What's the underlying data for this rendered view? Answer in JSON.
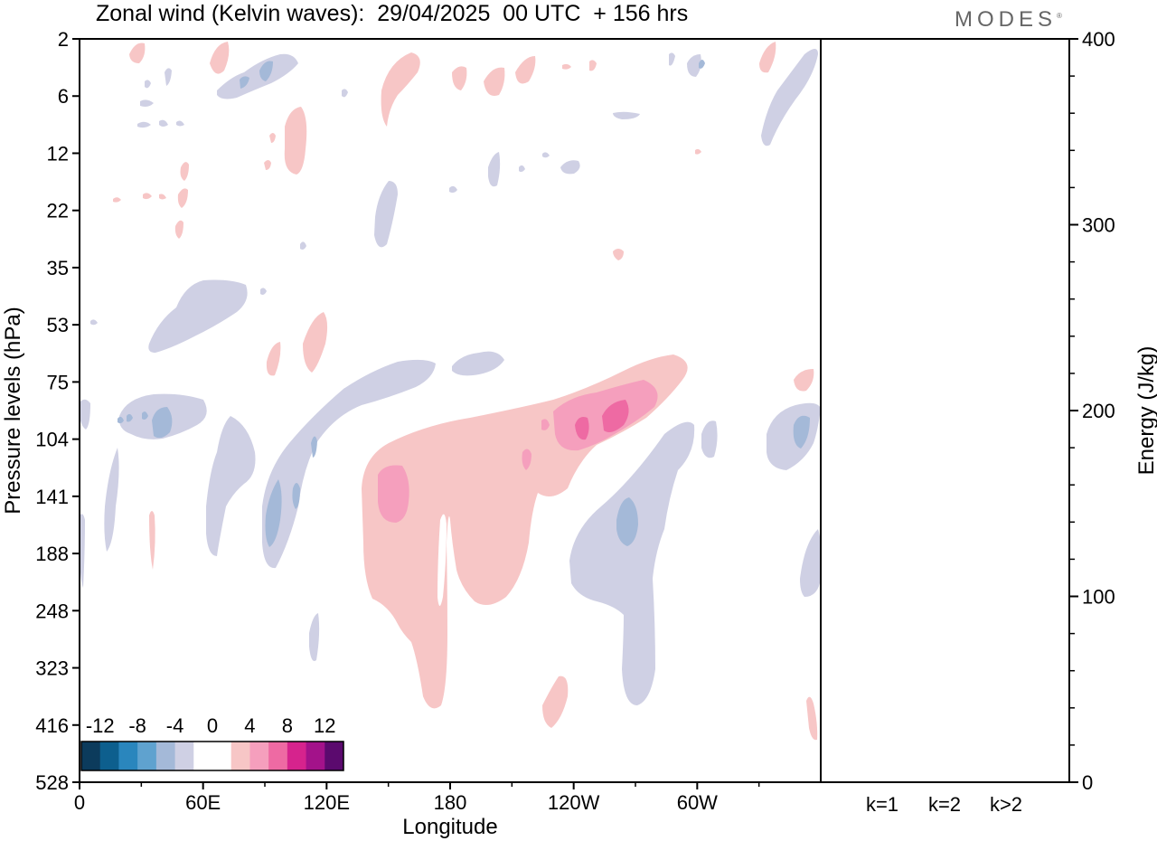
{
  "title": "Zonal wind (Kelvin waves):  29/04/2025  00 UTC  + 156 hrs",
  "logo": "MODES",
  "colors": {
    "neg_weak": "#cfd0e4",
    "neg_mid": "#a4b9d8",
    "neg_strong": "#7ea4cf",
    "pos_weak": "#f7c6c6",
    "pos_mid": "#f59fbd",
    "pos_strong": "#ee6aa3"
  },
  "chart_data": [
    {
      "type": "heatmap",
      "title": "Zonal wind (Kelvin waves):  29/04/2025  00 UTC  + 156 hrs",
      "xlabel": "Longitude",
      "ylabel": "Pressure levels (hPa)",
      "x_ticks": [
        "0",
        "60E",
        "120E",
        "180",
        "120W",
        "60W"
      ],
      "y_ticks": [
        "2",
        "6",
        "12",
        "22",
        "35",
        "53",
        "75",
        "104",
        "141",
        "188",
        "248",
        "323",
        "416",
        "528"
      ],
      "colorbar": {
        "labels": [
          "-12",
          "-8",
          "-4",
          "0",
          "4",
          "8",
          "12"
        ],
        "colors": [
          "#0c3b5c",
          "#0d5f8e",
          "#2a86bd",
          "#5fa2cf",
          "#a4b9d8",
          "#cfd0e4",
          "#ffffff",
          "#ffffff",
          "#f7c6c6",
          "#f59fbd",
          "#ee6aa3",
          "#d6238d",
          "#a3128a",
          "#5b0a6e"
        ]
      },
      "features": [
        {
          "sign": "positive",
          "max_value": 10,
          "lon_range": [
            "100W",
            "140W"
          ],
          "p_range": [
            75,
            141
          ]
        },
        {
          "sign": "positive",
          "max_value": 6,
          "lon_range": [
            "150E",
            "160E"
          ],
          "p_range": [
            120,
            188
          ]
        },
        {
          "sign": "positive",
          "max_value": 4,
          "lon_range": [
            "130E",
            "60W"
          ],
          "p_range": [
            75,
            416
          ]
        },
        {
          "sign": "negative",
          "max_value": -6,
          "lon_range": [
            "40E",
            "120E"
          ],
          "p_range": [
            75,
            188
          ]
        },
        {
          "sign": "negative",
          "max_value": -6,
          "lon_range": [
            "120W",
            "70W"
          ],
          "p_range": [
            104,
            416
          ]
        },
        {
          "sign": "negative",
          "max_value": -4,
          "lon_range": [
            "30E",
            "80E"
          ],
          "p_range": [
            35,
            75
          ]
        }
      ]
    },
    {
      "type": "bar",
      "ylabel": "Energy (J/kg)",
      "categories": [
        "k=1",
        "k=2",
        "k>2"
      ],
      "values": [
        0.3,
        0.2,
        0.2
      ],
      "ylim": [
        0,
        400
      ],
      "y_ticks": [
        "0",
        "100",
        "200",
        "300",
        "400"
      ]
    }
  ]
}
